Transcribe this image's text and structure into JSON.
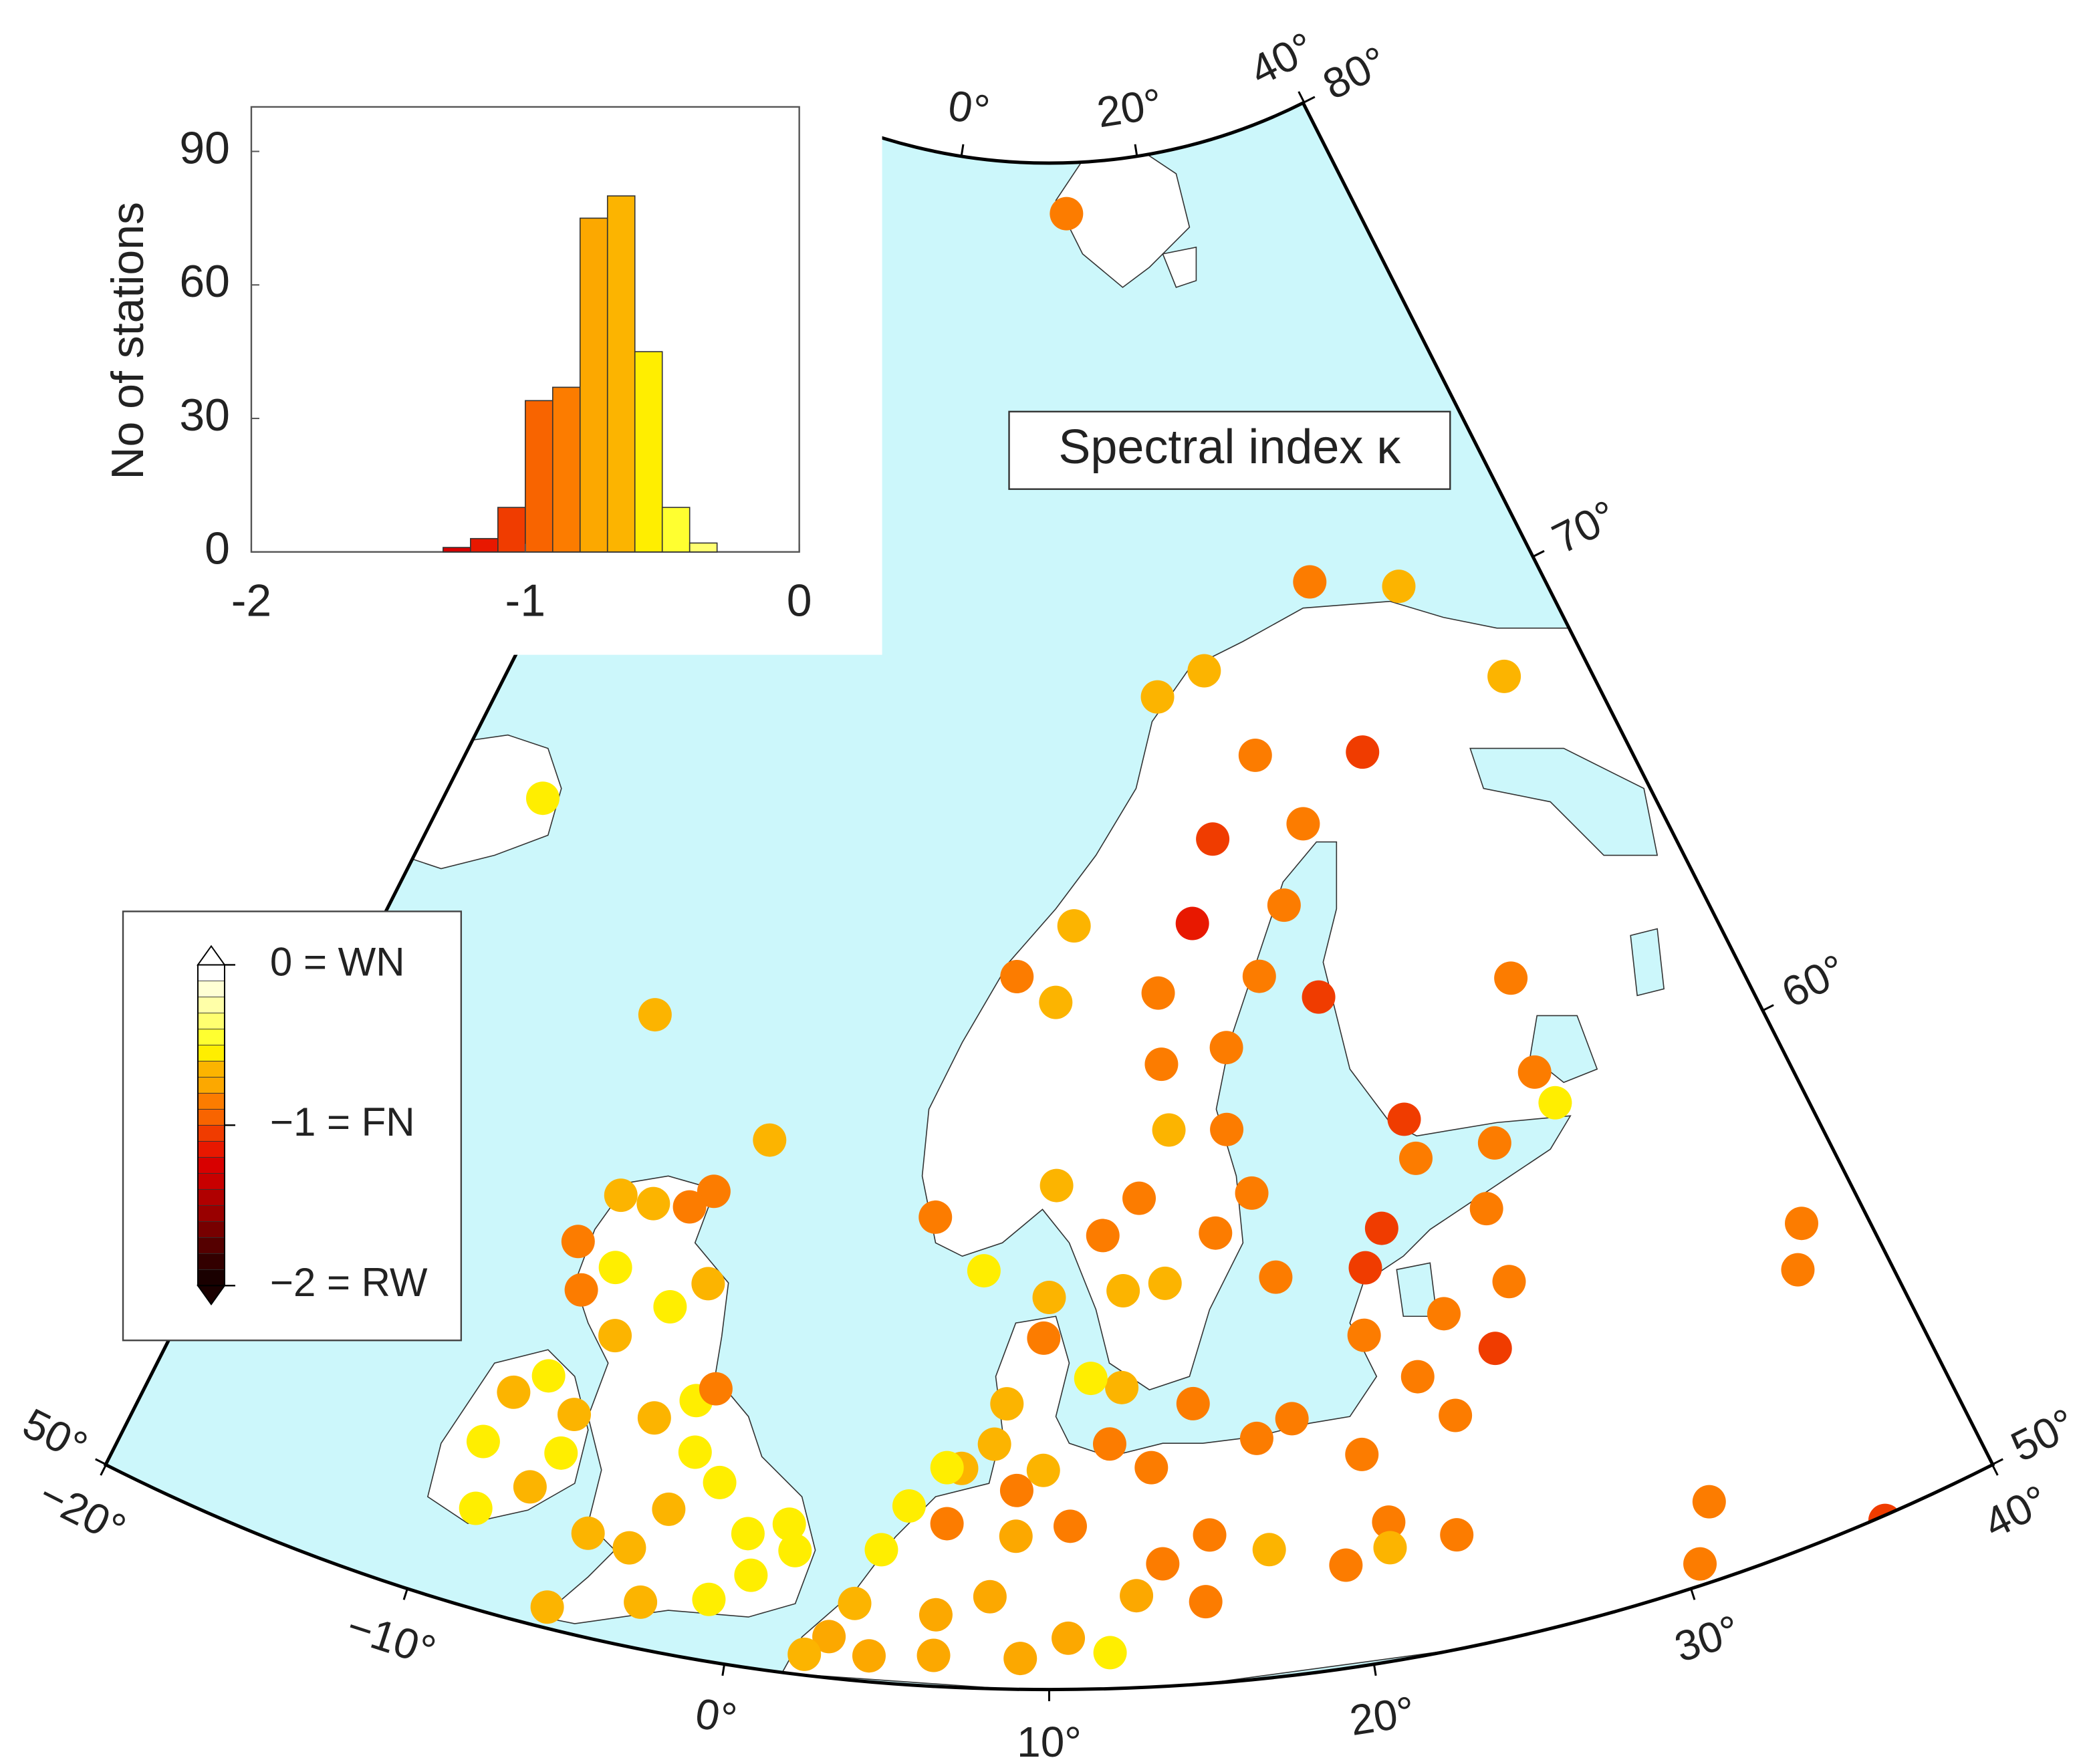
{
  "chart_data": [
    {
      "type": "histogram",
      "ylabel": "No of stations",
      "bins": [
        -1.3,
        -1.2,
        -1.1,
        -1.0,
        -0.9,
        -0.8,
        -0.7,
        -0.6,
        -0.5,
        -0.4,
        -0.3
      ],
      "values": [
        1,
        3,
        10,
        34,
        37,
        75,
        80,
        45,
        10,
        2
      ],
      "xlim": [
        -2,
        0
      ],
      "xticks": [
        -2,
        -1,
        0
      ],
      "ylim": [
        0,
        100
      ],
      "yticks": [
        0,
        30,
        60,
        90
      ]
    },
    {
      "type": "map",
      "title": "Spectral index κ",
      "lon_lim": [
        -20,
        40
      ],
      "lat_lim": [
        50,
        80
      ],
      "bottom_lon_ticks": [
        {
          "value": -20,
          "label": "−20°"
        },
        {
          "value": -10,
          "label": "−10°"
        },
        {
          "value": 0,
          "label": "0°"
        },
        {
          "value": 10,
          "label": "10°"
        },
        {
          "value": 20,
          "label": "20°"
        },
        {
          "value": 30,
          "label": "30°"
        },
        {
          "value": 40,
          "label": "40°"
        }
      ],
      "top_lon_ticks": [
        {
          "value": 0,
          "label": "0°"
        },
        {
          "value": 20,
          "label": "20°"
        },
        {
          "value": 40,
          "label": "40°"
        }
      ],
      "right_lat_ticks": [
        {
          "value": 80,
          "label": "80°"
        },
        {
          "value": 70,
          "label": "70°"
        },
        {
          "value": 60,
          "label": "60°"
        },
        {
          "value": 50,
          "label": "50°"
        }
      ],
      "left_lat_ticks": [
        {
          "value": 50,
          "label": "50°"
        }
      ],
      "colorbar": {
        "lim": [
          -2,
          0
        ],
        "ticks": [
          {
            "value": 0,
            "label": "0 = WN"
          },
          {
            "value": -1,
            "label": "−1 = FN"
          },
          {
            "value": -2,
            "label": "−2 = RW"
          }
        ],
        "colors": [
          "#1a0000",
          "#330000",
          "#550000",
          "#770000",
          "#990000",
          "#b00000",
          "#c80000",
          "#d80000",
          "#e81800",
          "#f03c00",
          "#f86400",
          "#fc7c00",
          "#fca800",
          "#fcb400",
          "#ffee00",
          "#ffff30",
          "#ffff70",
          "#ffffa8",
          "#ffffd4",
          "#ffffff"
        ]
      },
      "stations": {
        "lon": [
          11.8,
          26.6,
          31.8,
          35.6,
          19.2,
          16.3,
          21.3,
          27.0,
          18.4,
          23.1,
          16.9,
          21.4,
          11.2,
          8.5,
          10.3,
          15.0,
          19.7,
          22.2,
          30.7,
          14.9,
          17.8,
          15.0,
          17.4,
          30.4,
          30.8,
          24.7,
          28.0,
          24.8,
          -7.4,
          -15.6,
          -1.5,
          10.3,
          5.5,
          7.5,
          13.6,
          12.1,
          16.5,
          18.1,
          18.6,
          22.9,
          22.0,
          27.0,
          37.8,
          37.0,
          26.0,
          23.1,
          27.1,
          24.5,
          21.5,
          24.1,
          20.7,
          17.2,
          18.5,
          15.1,
          21.2,
          21.1,
          17.2,
          19.6,
          23.3,
          31.4,
          30.5,
          36.3,
          15.0,
          15.3,
          13.5,
          12.1,
          9.8,
          10.0,
          12.8,
          14.4,
          12.6,
          11.5,
          8.5,
          7.0,
          6.5,
          5.3,
          4.5,
          6.6,
          8.9,
          10.7,
          8.1,
          6.4,
          3.8,
          3.1,
          2.4,
          11.9,
          10.6,
          12.8,
          13.7,
          9.8,
          8.1,
          -2.1,
          -1.1,
          -2.6,
          0.1,
          1.4,
          -3.6,
          -5.0,
          -2.9,
          -5.7,
          -0.8,
          -2.4,
          -3.7,
          -5.7,
          -4.0,
          -2.8,
          -6.3,
          -5.5,
          -6.8,
          -3.3,
          -4.1,
          -7.3,
          -7.9,
          -1.8,
          0.4,
          1.7,
          -7.6,
          -8.6,
          -9.1,
          -8.7,
          -7.2,
          -6.4,
          -6.5,
          6.4,
          4.4,
          9.1,
          8.9
        ],
        "lat": [
          79.0,
          71.1,
          70.5,
          68.1,
          69.8,
          69.4,
          68.0,
          67.6,
          66.5,
          66.5,
          64.9,
          65.0,
          65.0,
          64.0,
          63.5,
          63.6,
          63.7,
          63.1,
          62.5,
          62.2,
          62.4,
          60.9,
          60.8,
          60.6,
          59.9,
          60.4,
          59.5,
          59.6,
          62.2,
          65.5,
          60.3,
          59.9,
          59.2,
          58.2,
          59.6,
          58.9,
          58.8,
          59.5,
          57.8,
          58.4,
          57.7,
          58.3,
          55.9,
          55.1,
          55.6,
          55.4,
          56.8,
          56.5,
          56.4,
          54.5,
          54.1,
          54.7,
          55.0,
          55.5,
          52.7,
          52.2,
          52.5,
          52.0,
          52.2,
          51.5,
          50.4,
          49.9,
          51.6,
          52.9,
          54.3,
          54.8,
          56.9,
          57.7,
          57.8,
          57.9,
          55.9,
          56.1,
          55.6,
          54.3,
          54.3,
          53.5,
          52.6,
          53.2,
          53.0,
          53.2,
          51.8,
          51.4,
          51.5,
          50.8,
          50.4,
          50.7,
          51.0,
          51.8,
          52.4,
          54.3,
          54.8,
          54.0,
          53.5,
          52.8,
          52.6,
          52.9,
          51.9,
          52.0,
          50.9,
          50.4,
          51.2,
          55.0,
          54.5,
          55.9,
          56.7,
          57.3,
          57.2,
          58.6,
          58.6,
          59.1,
          58.7,
          56.6,
          57.5,
          55.3,
          51.8,
          52.4,
          54.8,
          54.3,
          53.2,
          51.9,
          52.6,
          54.2,
          53.4,
          50.6,
          50.5,
          50.6,
          53.9
        ],
        "values": [
          -0.85,
          -0.85,
          -0.65,
          -0.65,
          -0.65,
          -0.65,
          -0.85,
          -1.05,
          -1.05,
          -0.85,
          -1.15,
          -0.85,
          -0.65,
          -0.85,
          -0.65,
          -0.85,
          -0.85,
          -1.05,
          -0.85,
          -0.85,
          -0.85,
          -0.65,
          -0.85,
          -0.85,
          -0.55,
          -1.05,
          -0.85,
          -0.85,
          -0.65,
          -0.55,
          -0.65,
          -0.65,
          -0.85,
          -0.55,
          -0.85,
          -0.85,
          -0.85,
          -0.85,
          -0.85,
          -1.05,
          -1.05,
          -0.85,
          -0.85,
          -0.85,
          -1.05,
          -0.85,
          -0.85,
          -0.85,
          -0.85,
          -0.85,
          -0.85,
          -0.85,
          -0.85,
          -0.85,
          -0.85,
          -0.65,
          -0.65,
          -0.85,
          -0.85,
          -0.85,
          -0.85,
          -1.05,
          -0.85,
          -0.85,
          -0.85,
          -0.85,
          -0.85,
          -0.65,
          -0.65,
          -0.65,
          -0.65,
          -0.55,
          -0.65,
          -0.65,
          -0.55,
          -0.55,
          -0.55,
          -0.85,
          -0.75,
          -0.85,
          -0.75,
          -0.75,
          -0.65,
          -0.75,
          -0.65,
          -0.55,
          -0.75,
          -0.75,
          -0.85,
          -0.65,
          -0.65,
          -0.55,
          -0.55,
          -0.65,
          -0.55,
          -0.55,
          -0.65,
          -0.65,
          -0.65,
          -0.65,
          -0.55,
          -0.55,
          -0.65,
          -0.65,
          -0.55,
          -0.65,
          -0.55,
          -0.65,
          -0.65,
          -0.85,
          -0.85,
          -0.85,
          -0.85,
          -0.85,
          -0.55,
          -0.55,
          -0.55,
          -0.65,
          -0.55,
          -0.55,
          -0.65,
          -0.65,
          -0.55,
          -0.75,
          -0.75,
          -0.75,
          -0.85
        ]
      }
    }
  ]
}
